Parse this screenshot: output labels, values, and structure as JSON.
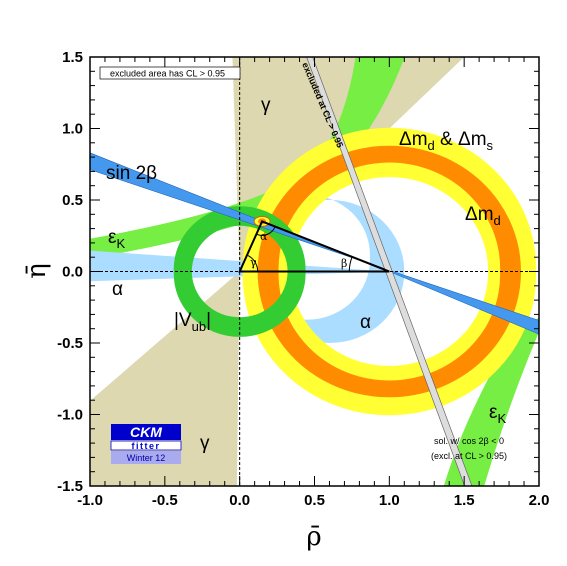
{
  "chart_data": {
    "type": "scatter",
    "title": "",
    "xlabel": "ρ̄",
    "ylabel": "η̄",
    "xlim": [
      -1.0,
      2.0
    ],
    "ylim": [
      -1.5,
      1.5
    ],
    "x_ticks": [
      "-1.0",
      "-0.5",
      "0.0",
      "0.5",
      "1.0",
      "1.5",
      "2.0"
    ],
    "y_ticks": [
      "1.5",
      "1.0",
      "0.5",
      "0.0",
      "-0.5",
      "-1.0",
      "-1.5"
    ],
    "apex": {
      "rho": 0.15,
      "eta": 0.35
    },
    "unitarity_triangle": [
      [
        0,
        0
      ],
      [
        1,
        0
      ],
      [
        0.15,
        0.35
      ]
    ],
    "constraints": [
      {
        "name": "Δmd & Δms",
        "type": "ring",
        "center": [
          1,
          0
        ],
        "r_in": 0.74,
        "r_out": 0.88,
        "color": "#ff8c00"
      },
      {
        "name": "Δmd",
        "type": "ring",
        "center": [
          1,
          0
        ],
        "r_in": 0.66,
        "r_out": 0.98,
        "color": "#ffff33"
      },
      {
        "name": "|Vub|",
        "type": "ring",
        "center": [
          0,
          0
        ],
        "r_in": 0.32,
        "r_out": 0.44,
        "color": "#33cc33"
      },
      {
        "name": "sin 2β",
        "type": "wedge",
        "color": "#4499ee"
      },
      {
        "name": "α",
        "type": "region",
        "color": "#aaddff"
      },
      {
        "name": "γ",
        "type": "region",
        "color": "#ddd8b0"
      },
      {
        "name": "εK",
        "type": "region",
        "color": "#77ee44"
      }
    ],
    "labels": {
      "excluded_area": "excluded area has CL > 0.95",
      "excluded_at": "excluded at CL > 0.95",
      "sin2beta": "sin 2β",
      "epsK": "ε",
      "epsK_sub": "K",
      "alpha": "α",
      "beta": "β",
      "gamma": "γ",
      "vub_pre": "|V",
      "vub_sub": "ub",
      "vub_post": "|",
      "dmd": "Δm",
      "dmd_sub": "d",
      "dms_amp": " & Δm",
      "dms_sub": "s",
      "sol_line1": "sol. w/ cos 2β < 0",
      "sol_line2": "(excl. at CL > 0.95)"
    },
    "logo": {
      "line1": "CKM",
      "line2": "fitter",
      "line3": "Winter 12"
    },
    "grid": false
  },
  "colors": {
    "frame": "#000000",
    "orange": "#ff8c00",
    "yellow": "#ffff33",
    "green_ring": "#33cc33",
    "eps_green": "#77ee44",
    "alpha_blue": "#aaddff",
    "sin2b_blue": "#4499ee",
    "gamma_tan": "#ddd8b0",
    "logo_blue": "#0000cc"
  }
}
